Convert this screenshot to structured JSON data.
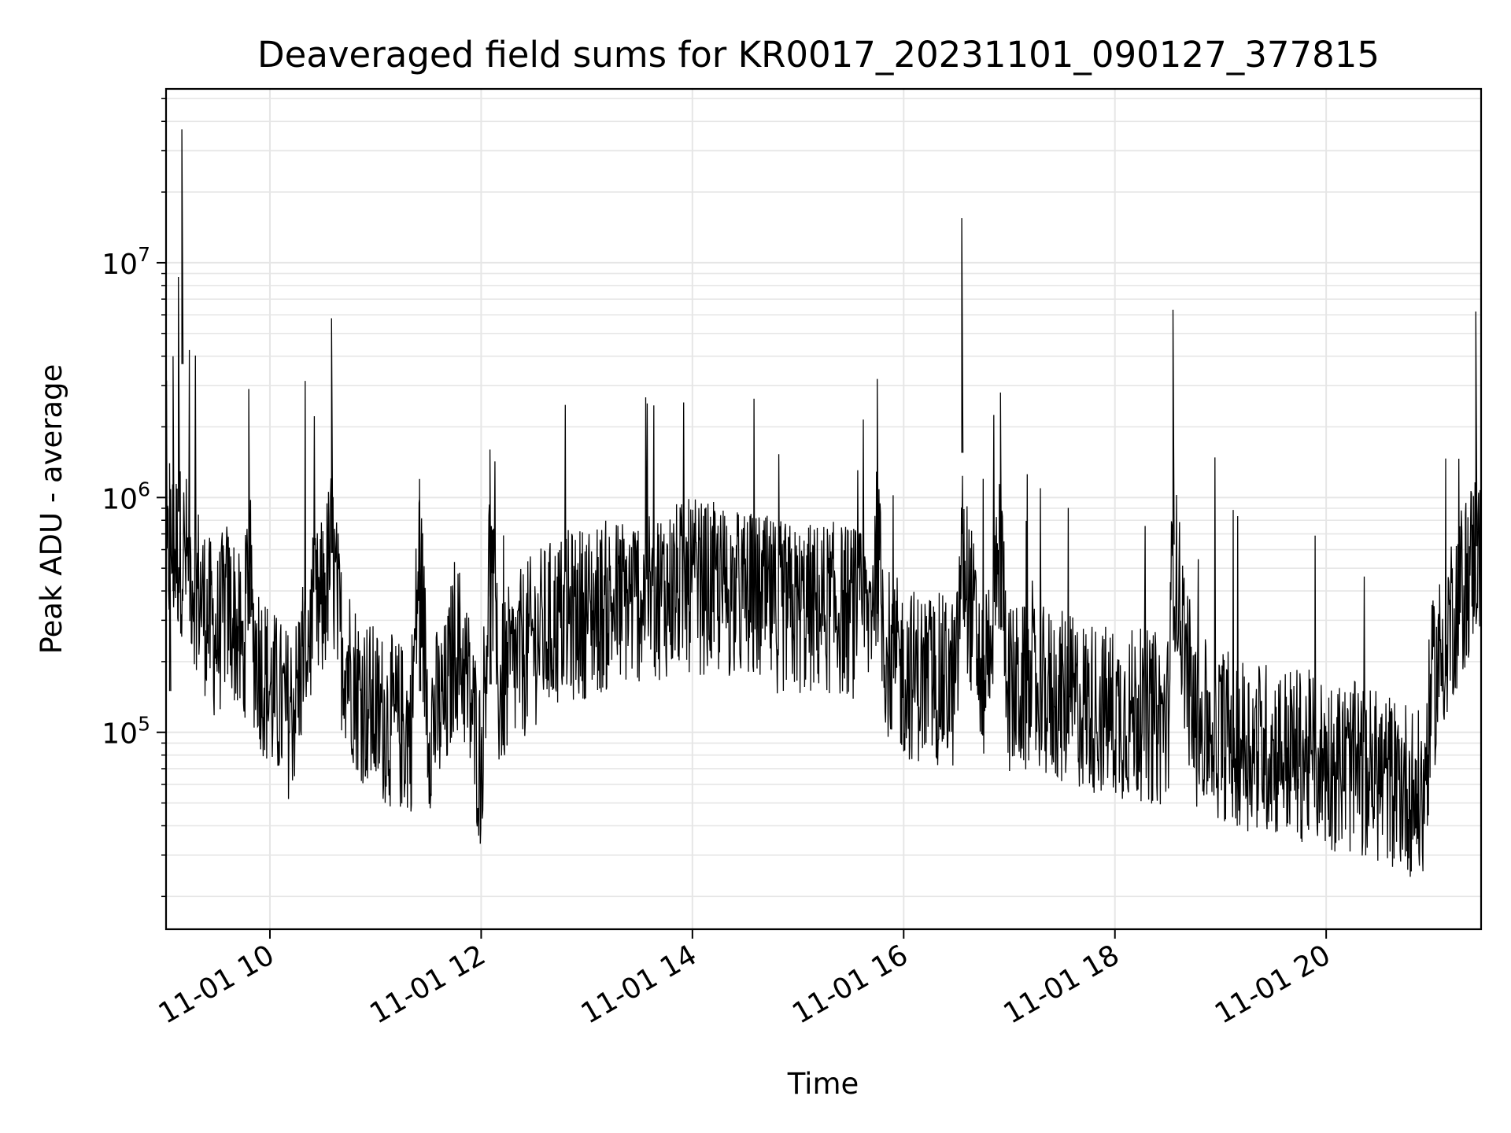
{
  "chart_data": {
    "type": "line",
    "title": "Deaveraged field sums for KR0017_20231101_090127_377815",
    "xlabel": "Time",
    "ylabel": "Peak ADU - average",
    "y_scale": "log",
    "xlim": [
      "2023-11-01 09:01",
      "2023-11-01 21:28"
    ],
    "ylim": [
      14500,
      55000000
    ],
    "x_ticks": [
      {
        "value": "2023-11-01 10:00",
        "label": "11-01 10"
      },
      {
        "value": "2023-11-01 12:00",
        "label": "11-01 12"
      },
      {
        "value": "2023-11-01 14:00",
        "label": "11-01 14"
      },
      {
        "value": "2023-11-01 16:00",
        "label": "11-01 16"
      },
      {
        "value": "2023-11-01 18:00",
        "label": "11-01 18"
      },
      {
        "value": "2023-11-01 20:00",
        "label": "11-01 20"
      }
    ],
    "y_ticks": [
      {
        "value": 100000,
        "base": "10",
        "exp": "5"
      },
      {
        "value": 1000000,
        "base": "10",
        "exp": "6"
      },
      {
        "value": 10000000,
        "base": "10",
        "exp": "7"
      }
    ],
    "grid": true,
    "line_color": "#000000",
    "series": [
      {
        "x": [
          "2023-11-01 09:01",
          "2023-11-01 09:03",
          "2023-11-01 09:05",
          "2023-11-01 09:07",
          "2023-11-01 09:08",
          "2023-11-01 09:10",
          "2023-11-01 09:15",
          "2023-11-01 09:20",
          "2023-11-01 09:25",
          "2023-11-01 09:30",
          "2023-11-01 09:35",
          "2023-11-01 09:40",
          "2023-11-01 09:45",
          "2023-11-01 09:48",
          "2023-11-01 09:50",
          "2023-11-01 10:00",
          "2023-11-01 10:10",
          "2023-11-01 10:15",
          "2023-11-01 10:20",
          "2023-11-01 10:30",
          "2023-11-01 10:35",
          "2023-11-01 10:40",
          "2023-11-01 10:50",
          "2023-11-01 11:00",
          "2023-11-01 11:10",
          "2023-11-01 11:20",
          "2023-11-01 11:25",
          "2023-11-01 11:30",
          "2023-11-01 11:40",
          "2023-11-01 11:45",
          "2023-11-01 11:50",
          "2023-11-01 12:00",
          "2023-11-01 12:05",
          "2023-11-01 12:10",
          "2023-11-01 12:20",
          "2023-11-01 12:30",
          "2023-11-01 12:45",
          "2023-11-01 13:00",
          "2023-11-01 13:15",
          "2023-11-01 13:30",
          "2023-11-01 13:45",
          "2023-11-01 14:00",
          "2023-11-01 14:15",
          "2023-11-01 14:30",
          "2023-11-01 14:45",
          "2023-11-01 15:00",
          "2023-11-01 15:15",
          "2023-11-01 15:30",
          "2023-11-01 15:40",
          "2023-11-01 15:45",
          "2023-11-01 15:50",
          "2023-11-01 16:00",
          "2023-11-01 16:15",
          "2023-11-01 16:30",
          "2023-11-01 16:33",
          "2023-11-01 16:45",
          "2023-11-01 16:55",
          "2023-11-01 17:00",
          "2023-11-01 17:15",
          "2023-11-01 17:30",
          "2023-11-01 17:45",
          "2023-11-01 18:00",
          "2023-11-01 18:15",
          "2023-11-01 18:30",
          "2023-11-01 18:33",
          "2023-11-01 18:45",
          "2023-11-01 19:00",
          "2023-11-01 19:15",
          "2023-11-01 19:30",
          "2023-11-01 19:45",
          "2023-11-01 20:00",
          "2023-11-01 20:15",
          "2023-11-01 20:30",
          "2023-11-01 20:45",
          "2023-11-01 20:55",
          "2023-11-01 21:00",
          "2023-11-01 21:10",
          "2023-11-01 21:20",
          "2023-11-01 21:25",
          "2023-11-01 21:28"
        ],
        "values": [
          400000,
          1400000,
          4000000,
          600000,
          8700000,
          37000000,
          500000,
          400000,
          300000,
          250000,
          350000,
          300000,
          200000,
          2900000,
          250000,
          150000,
          120000,
          140000,
          250000,
          350000,
          5800000,
          250000,
          150000,
          120000,
          110000,
          100000,
          1200000,
          110000,
          130000,
          250000,
          200000,
          70000,
          1600000,
          150000,
          200000,
          250000,
          300000,
          330000,
          350000,
          380000,
          400000,
          420000,
          400000,
          380000,
          350000,
          330000,
          340000,
          330000,
          300000,
          3200000,
          220000,
          180000,
          170000,
          160000,
          15500000,
          160000,
          2800000,
          150000,
          150000,
          140000,
          130000,
          120000,
          120000,
          110000,
          6300000,
          110000,
          100000,
          90000,
          85000,
          80000,
          75000,
          70000,
          65000,
          60000,
          50000,
          150000,
          300000,
          450000,
          6200000,
          500000
        ]
      }
    ]
  }
}
